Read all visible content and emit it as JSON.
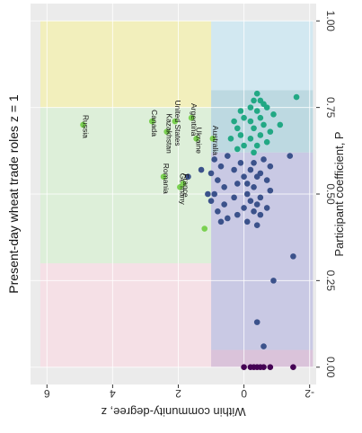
{
  "chart_data": {
    "type": "scatter",
    "title": "Present-day wheat trade roles z = 1",
    "xlabel": "Participant coefficient, P",
    "ylabel": "Within community-degree, z",
    "xlim": [
      -0.05,
      1.05
    ],
    "ylim": [
      -2.2,
      6.5
    ],
    "x_ticks": [
      0.0,
      0.25,
      0.5,
      0.75,
      1.0
    ],
    "x_tick_labels": [
      "0.00",
      "0.25",
      "0.50",
      "0.75",
      "1.00"
    ],
    "y_ticks": [
      -2,
      0,
      2,
      4,
      6
    ],
    "y_tick_labels": [
      "-2",
      "0",
      "2",
      "4",
      "6"
    ],
    "grid": true,
    "regions": [
      {
        "p": [
          0.0,
          0.05
        ],
        "z": [
          -2.1,
          1.0
        ],
        "color": "#d8bfd8"
      },
      {
        "p": [
          0.05,
          0.62
        ],
        "z": [
          -2.1,
          1.0
        ],
        "color": "#c5c5e3"
      },
      {
        "p": [
          0.62,
          0.8
        ],
        "z": [
          -2.1,
          1.0
        ],
        "color": "#b8d7e0"
      },
      {
        "p": [
          0.8,
          1.0
        ],
        "z": [
          -2.1,
          1.0
        ],
        "color": "#cfe8f2"
      },
      {
        "p": [
          0.0,
          0.3
        ],
        "z": [
          1.0,
          6.2
        ],
        "color": "#f6dfe5"
      },
      {
        "p": [
          0.3,
          0.75
        ],
        "z": [
          1.0,
          6.2
        ],
        "color": "#dcefd7"
      },
      {
        "p": [
          0.75,
          1.0
        ],
        "z": [
          1.0,
          6.2
        ],
        "color": "#f3f0b7"
      }
    ],
    "hubs": [
      {
        "name": "Russia",
        "p": 0.7,
        "z": 4.9
      },
      {
        "name": "Canada",
        "p": 0.71,
        "z": 2.8
      },
      {
        "name": "Kazakhstan",
        "p": 0.68,
        "z": 2.35
      },
      {
        "name": "United States",
        "p": 0.71,
        "z": 2.1
      },
      {
        "name": "Romania",
        "p": 0.55,
        "z": 2.45
      },
      {
        "name": "Germany",
        "p": 0.52,
        "z": 1.95
      },
      {
        "name": "France",
        "p": 0.53,
        "z": 1.85
      },
      {
        "name": "Argentina",
        "p": 0.72,
        "z": 1.6
      },
      {
        "name": "Ukraine",
        "p": 0.66,
        "z": 1.45
      },
      {
        "name": "Australia",
        "p": 0.66,
        "z": 0.95
      },
      {
        "name": "",
        "p": 0.4,
        "z": 1.2
      }
    ],
    "points": [
      [
        0.79,
        -0.4
      ],
      [
        0.77,
        -0.3
      ],
      [
        0.77,
        -0.5
      ],
      [
        0.76,
        -0.6
      ],
      [
        0.75,
        -0.2
      ],
      [
        0.75,
        -0.7
      ],
      [
        0.74,
        0.1
      ],
      [
        0.74,
        -0.4
      ],
      [
        0.73,
        -0.9
      ],
      [
        0.72,
        0.0
      ],
      [
        0.72,
        -0.5
      ],
      [
        0.71,
        0.3
      ],
      [
        0.71,
        -0.2
      ],
      [
        0.7,
        -0.6
      ],
      [
        0.7,
        -1.1
      ],
      [
        0.69,
        0.2
      ],
      [
        0.69,
        -0.3
      ],
      [
        0.68,
        -0.8
      ],
      [
        0.67,
        0.1
      ],
      [
        0.67,
        -0.5
      ],
      [
        0.66,
        0.4
      ],
      [
        0.66,
        -0.2
      ],
      [
        0.65,
        -0.7
      ],
      [
        0.64,
        0.0
      ],
      [
        0.64,
        -0.4
      ],
      [
        0.63,
        0.2
      ],
      [
        0.78,
        -1.6
      ],
      [
        0.62,
        -0.3
      ],
      [
        0.61,
        0.5
      ],
      [
        0.61,
        -1.4
      ],
      [
        0.6,
        -0.6
      ],
      [
        0.59,
        0.1
      ],
      [
        0.59,
        -0.3
      ],
      [
        0.58,
        0.7
      ],
      [
        0.58,
        -0.8
      ],
      [
        0.57,
        0.3
      ],
      [
        0.57,
        -0.2
      ],
      [
        0.56,
        1.0
      ],
      [
        0.56,
        -0.5
      ],
      [
        0.55,
        0.0
      ],
      [
        0.55,
        -0.4
      ],
      [
        0.54,
        0.8
      ],
      [
        0.54,
        -0.7
      ],
      [
        0.53,
        0.2
      ],
      [
        0.53,
        -0.1
      ],
      [
        0.52,
        0.6
      ],
      [
        0.52,
        -0.3
      ],
      [
        0.51,
        -0.8
      ],
      [
        0.5,
        0.9
      ],
      [
        0.5,
        -0.1
      ],
      [
        0.49,
        0.3
      ],
      [
        0.49,
        -0.5
      ],
      [
        0.48,
        1.0
      ],
      [
        0.48,
        -0.2
      ],
      [
        0.47,
        0.6
      ],
      [
        0.47,
        -0.4
      ],
      [
        0.46,
        0.0
      ],
      [
        0.46,
        -0.7
      ],
      [
        0.45,
        0.8
      ],
      [
        0.45,
        -0.3
      ],
      [
        0.44,
        0.2
      ],
      [
        0.44,
        -0.5
      ],
      [
        0.43,
        0.5
      ],
      [
        0.42,
        -0.1
      ],
      [
        0.42,
        0.7
      ],
      [
        0.41,
        -0.4
      ],
      [
        0.55,
        1.7
      ],
      [
        0.57,
        1.3
      ],
      [
        0.6,
        0.9
      ],
      [
        0.5,
        1.1
      ],
      [
        0.32,
        -1.5
      ],
      [
        0.25,
        -0.9
      ],
      [
        0.13,
        -0.4
      ],
      [
        0.06,
        -0.6
      ],
      [
        0.0,
        0.0
      ],
      [
        0.0,
        -0.2
      ],
      [
        0.0,
        -0.3
      ],
      [
        0.0,
        -0.4
      ],
      [
        0.0,
        -0.5
      ],
      [
        0.0,
        -0.6
      ],
      [
        0.0,
        -0.8
      ],
      [
        0.0,
        -1.5
      ]
    ],
    "point_colors": {
      "hub": "#7ad151",
      "connector": "#22a884",
      "peripheral": "#3b528b",
      "ultra": "#440154"
    }
  }
}
